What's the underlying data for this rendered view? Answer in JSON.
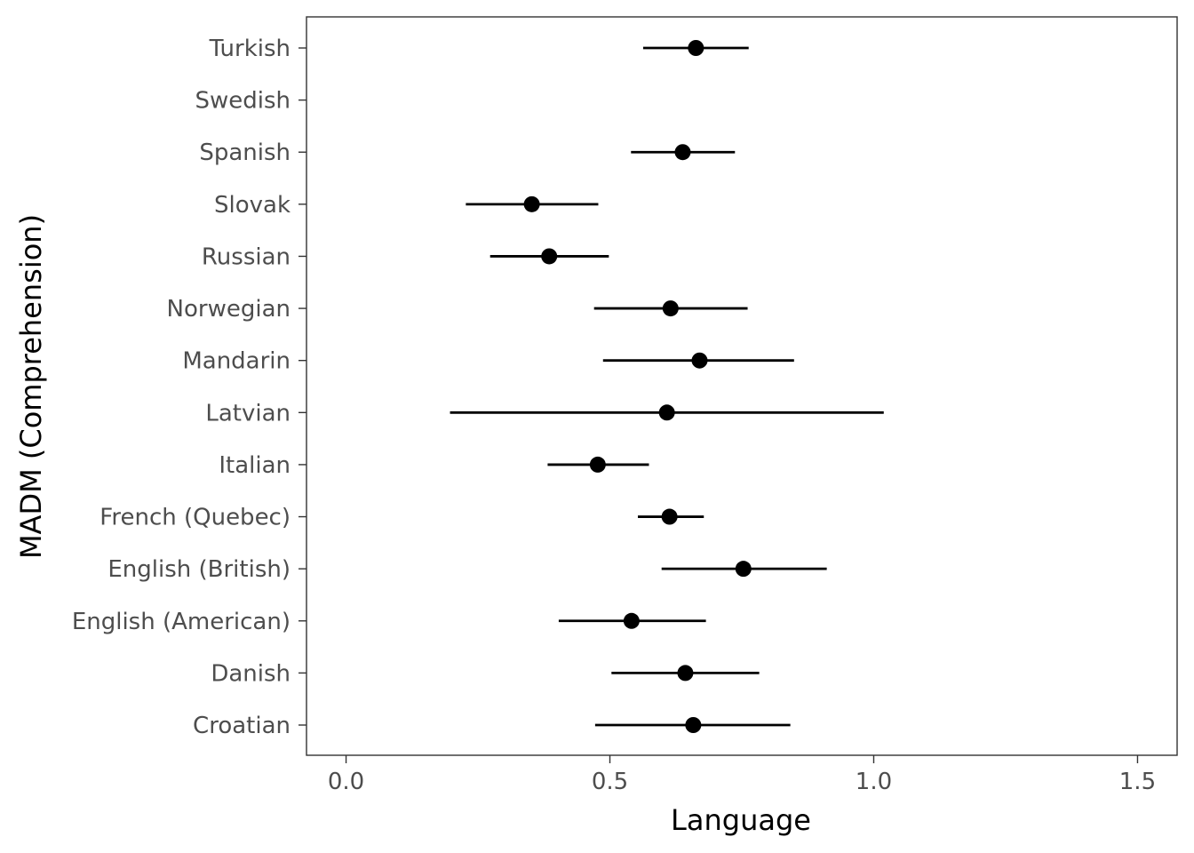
{
  "chart_data": {
    "type": "scatter",
    "subtype": "point-range (dot with horizontal interval)",
    "title": "",
    "xlabel": "Language",
    "ylabel": "MADM (Comprehension)",
    "xlim": [
      -0.075,
      1.575
    ],
    "x_ticks": [
      0.0,
      0.5,
      1.0,
      1.5
    ],
    "x_tick_labels": [
      "0.0",
      "0.5",
      "1.0",
      "1.5"
    ],
    "grid": false,
    "legend": "none",
    "categories": [
      "Turkish",
      "Swedish",
      "Spanish",
      "Slovak",
      "Russian",
      "Norwegian",
      "Mandarin",
      "Latvian",
      "Italian",
      "French (Quebec)",
      "English (British)",
      "English (American)",
      "Danish",
      "Croatian"
    ],
    "series": [
      {
        "estimate": [
          0.663,
          null,
          0.638,
          0.352,
          0.385,
          0.615,
          0.67,
          0.608,
          0.477,
          0.613,
          0.753,
          0.541,
          0.643,
          0.658
        ],
        "lower": [
          0.563,
          null,
          0.54,
          0.227,
          0.273,
          0.47,
          0.487,
          0.197,
          0.382,
          0.553,
          0.598,
          0.403,
          0.503,
          0.472
        ],
        "upper": [
          0.763,
          null,
          0.737,
          0.478,
          0.498,
          0.761,
          0.849,
          1.019,
          0.574,
          0.678,
          0.911,
          0.682,
          0.783,
          0.842
        ]
      }
    ],
    "colors": {
      "point": "#000000",
      "interval": "#000000",
      "panel_border": "#333333",
      "tick_label": "#4d4d4d",
      "axis_title": "#000000"
    }
  }
}
